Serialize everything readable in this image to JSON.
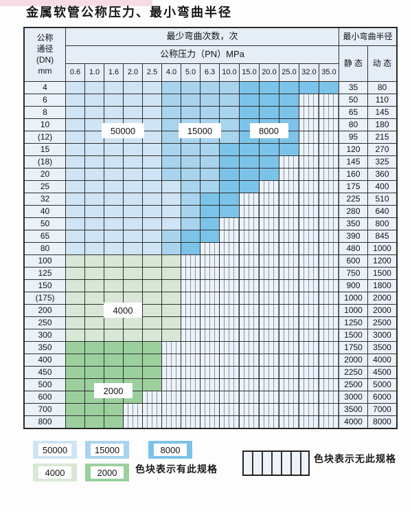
{
  "title": "金属软管公称压力、最小弯曲半径",
  "table": {
    "dn_header_lines": [
      "公称",
      "通径",
      "(DN)",
      "mm"
    ],
    "cycles_header": "最少弯曲次数，次",
    "pressure_header": "公称压力（PN）MPa",
    "pressure_columns": [
      "0.6",
      "1.0",
      "1.6",
      "2.0",
      "2.5",
      "4.0",
      "5.0",
      "6.3",
      "10.0",
      "15.0",
      "20.0",
      "25.0",
      "32.0",
      "35.0"
    ],
    "radius_header": "最小弯曲半径",
    "static_header": "静 态",
    "dynamic_header": "动 态",
    "zone_key": {
      "L": "50000",
      "M": "15000",
      "D": "8000",
      "G": "4000",
      "E": "2000",
      "X": "无此规格"
    },
    "rows": [
      {
        "dn": "4",
        "zones": "LLLLLMMMMDDDDD",
        "static": "35",
        "dynamic": "80"
      },
      {
        "dn": "6",
        "zones": "LLLLLMMMMDDDXX",
        "static": "50",
        "dynamic": "110"
      },
      {
        "dn": "8",
        "zones": "LLLLLMMMMDDDXX",
        "static": "65",
        "dynamic": "145"
      },
      {
        "dn": "10",
        "zones": "LLLLLMMMMDDDXX",
        "static": "80",
        "dynamic": "180"
      },
      {
        "dn": "(12)",
        "zones": "LLLLLMMMMDDDXX",
        "static": "95",
        "dynamic": "215"
      },
      {
        "dn": "15",
        "zones": "LLLLLMMMDDDDXX",
        "static": "120",
        "dynamic": "270"
      },
      {
        "dn": "(18)",
        "zones": "LLLLLMMMDDDXXX",
        "static": "145",
        "dynamic": "325"
      },
      {
        "dn": "20",
        "zones": "LLLLLMMMDDDXXX",
        "static": "160",
        "dynamic": "360"
      },
      {
        "dn": "25",
        "zones": "LLLLLLMMDDXXXX",
        "static": "175",
        "dynamic": "400"
      },
      {
        "dn": "32",
        "zones": "LLLLLLMDDXXXXX",
        "static": "225",
        "dynamic": "510"
      },
      {
        "dn": "40",
        "zones": "LLLLLLMDDXXXXX",
        "static": "280",
        "dynamic": "640"
      },
      {
        "dn": "50",
        "zones": "LLLLLLMDXXXXXX",
        "static": "350",
        "dynamic": "800"
      },
      {
        "dn": "65",
        "zones": "LLLLLMDDXXXXXX",
        "static": "390",
        "dynamic": "845"
      },
      {
        "dn": "80",
        "zones": "LLLLLMDXXXXXXX",
        "static": "480",
        "dynamic": "1000"
      },
      {
        "dn": "100",
        "zones": "GGGGGGXXXXXXXX",
        "static": "600",
        "dynamic": "1200"
      },
      {
        "dn": "125",
        "zones": "GGGGGGXXXXXXXX",
        "static": "750",
        "dynamic": "1500"
      },
      {
        "dn": "150",
        "zones": "GGGGGGXXXXXXXX",
        "static": "900",
        "dynamic": "1800"
      },
      {
        "dn": "(175)",
        "zones": "GGGGGGXXXXXXXX",
        "static": "1000",
        "dynamic": "2000"
      },
      {
        "dn": "200",
        "zones": "GGGGGGXXXXXXXX",
        "static": "1000",
        "dynamic": "2000"
      },
      {
        "dn": "250",
        "zones": "GGGGGGXXXXXXXX",
        "static": "1250",
        "dynamic": "2500"
      },
      {
        "dn": "300",
        "zones": "GGGGGGXXXXXXXX",
        "static": "1500",
        "dynamic": "3000"
      },
      {
        "dn": "350",
        "zones": "EEEEEXXXXXXXXX",
        "static": "1750",
        "dynamic": "3500"
      },
      {
        "dn": "400",
        "zones": "EEEEEXXXXXXXXX",
        "static": "2000",
        "dynamic": "4000"
      },
      {
        "dn": "450",
        "zones": "EEEEEXXXXXXXXX",
        "static": "2250",
        "dynamic": "4500"
      },
      {
        "dn": "500",
        "zones": "EEEEEXXXXXXXXX",
        "static": "2500",
        "dynamic": "5000"
      },
      {
        "dn": "600",
        "zones": "EEEEXXXXXXXXXX",
        "static": "3000",
        "dynamic": "6000"
      },
      {
        "dn": "700",
        "zones": "EEEXXXXXXXXXXX",
        "static": "3500",
        "dynamic": "7000"
      },
      {
        "dn": "800",
        "zones": "EEEXXXXXXXXXXX",
        "static": "4000",
        "dynamic": "8000"
      }
    ]
  },
  "zone_labels": [
    {
      "text": "50000",
      "col_start": 3,
      "col_end": 4,
      "row_line": 4
    },
    {
      "text": "15000",
      "col_start": 7,
      "col_end": 8,
      "row_line": 4
    },
    {
      "text": "8000",
      "col_start": 10,
      "col_end": 12,
      "row_line": 4
    },
    {
      "text": "4000",
      "col_start": 3,
      "col_end": 4,
      "row_line": 18.5
    },
    {
      "text": "2000",
      "col_start": 2,
      "col_end": 4,
      "row_line": 25
    }
  ],
  "legend": {
    "items": [
      {
        "label": "50000",
        "zone": "L"
      },
      {
        "label": "15000",
        "zone": "M"
      },
      {
        "label": "8000",
        "zone": "D"
      },
      {
        "label": "4000",
        "zone": "G"
      },
      {
        "label": "2000",
        "zone": "E"
      }
    ],
    "has_spec_text": "色块表示有此规格",
    "no_spec_text": "色块表示无此规格"
  },
  "colors": {
    "L": "#cfe4f4",
    "M": "#a9d4ee",
    "D": "#7cc3e9",
    "G": "#d9e8d6",
    "E": "#9bd09d",
    "hatch_bg": "#eef3fa",
    "hatch_line": "#8495a5",
    "grid": "#2e2e2e",
    "header_bg": "#e5eef7",
    "label_bg": "#eaf1f9"
  }
}
